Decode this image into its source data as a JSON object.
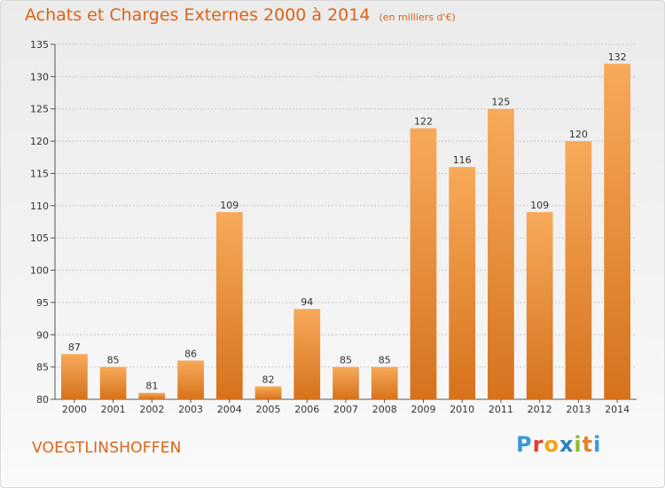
{
  "header": {
    "title": "Achats et Charges Externes 2000 à 2014",
    "unit": "(en milliers d'€)"
  },
  "footer": {
    "commune": "VOEGTLINSHOFFEN",
    "logo_letters": [
      {
        "char": "P",
        "color": "#3a9ad9"
      },
      {
        "char": "r",
        "color": "#e53b2c"
      },
      {
        "char": "o",
        "color": "#f0a31a"
      },
      {
        "char": "x",
        "color": "#2f7fc1"
      },
      {
        "char": "i",
        "color": "#8bbf2c"
      },
      {
        "char": "t",
        "color": "#e5822a"
      },
      {
        "char": "i",
        "color": "#3a9ad9"
      }
    ]
  },
  "colors": {
    "accent": "#d9641a",
    "bar_light": "#f6aa5a",
    "bar_dark": "#d6721c"
  },
  "chart_data": {
    "type": "bar",
    "title": "Achats et Charges Externes 2000 à 2014",
    "subtitle": "(en milliers d'€)",
    "xlabel": "",
    "ylabel": "",
    "categories": [
      "2000",
      "2001",
      "2002",
      "2003",
      "2004",
      "2005",
      "2006",
      "2007",
      "2008",
      "2009",
      "2010",
      "2011",
      "2012",
      "2013",
      "2014"
    ],
    "values": [
      87,
      85,
      81,
      86,
      109,
      82,
      94,
      85,
      85,
      122,
      116,
      125,
      109,
      120,
      132
    ],
    "ylim": [
      80,
      135
    ],
    "yticks": [
      80,
      85,
      90,
      95,
      100,
      105,
      110,
      115,
      120,
      125,
      130,
      135
    ],
    "grid": "horizontal",
    "legend": "none"
  }
}
